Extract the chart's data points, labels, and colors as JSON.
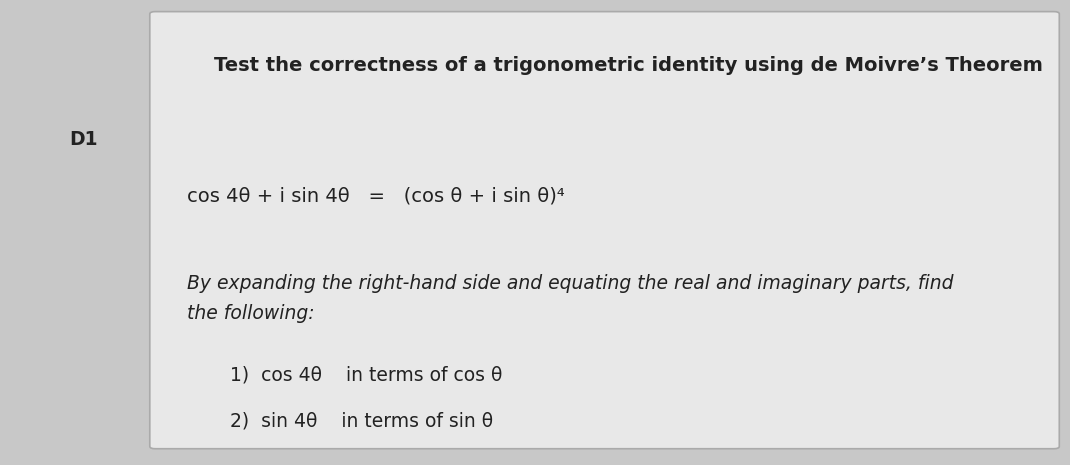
{
  "background_color": "#c8c8c8",
  "paper_color": "#e8e8e8",
  "title": "Test the correctness of a trigonometric identity using de Moivre’s Theorem",
  "label_d1": "D1",
  "equation": "cos 4θ + i sin 4θ   =   (cos θ + i sin θ)⁴",
  "body_text": "By expanding the right-hand side and equating the real and imaginary parts, find\nthe following:",
  "item1": "1)  cos 4θ    in terms of cos θ",
  "item2": "2)  sin 4θ    in terms of sin θ",
  "title_fontsize": 14,
  "label_fontsize": 13.5,
  "eq_fontsize": 14,
  "body_fontsize": 13.5,
  "item_fontsize": 13.5,
  "text_color": "#222222"
}
